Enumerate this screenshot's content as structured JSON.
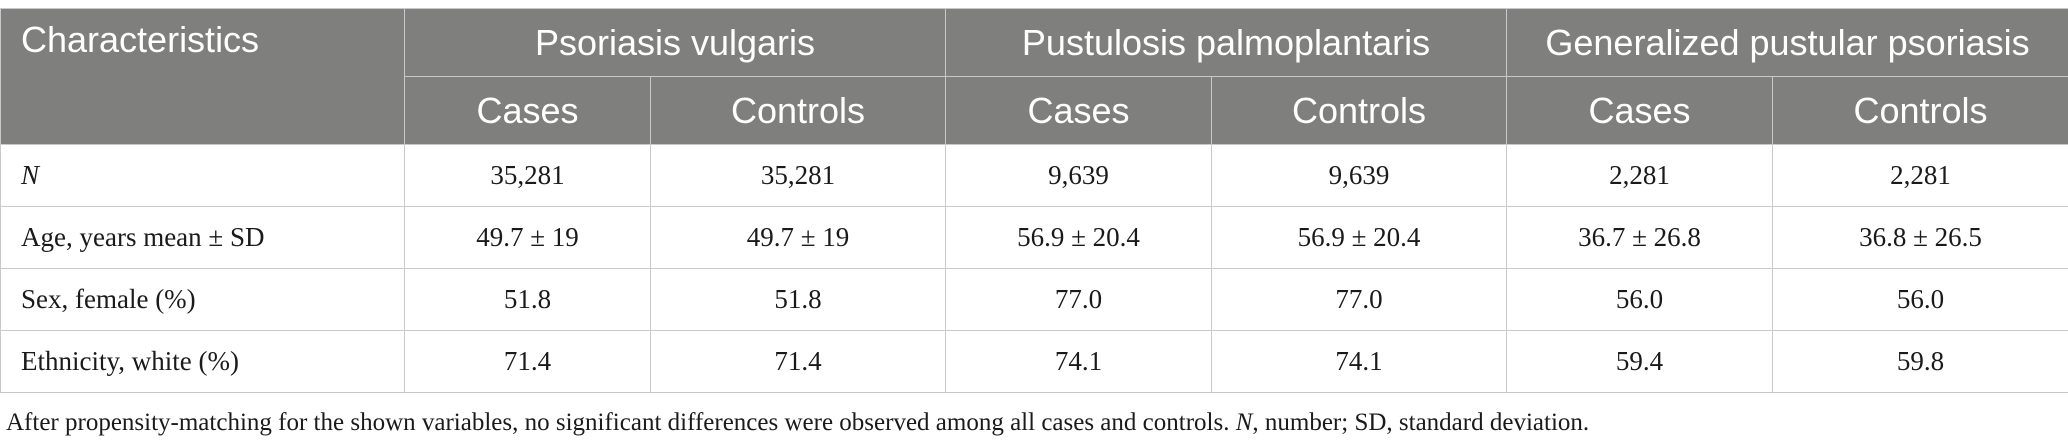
{
  "table": {
    "header": {
      "characteristics": "Characteristics",
      "groups": [
        "Psoriasis vulgaris",
        "Pustulosis palmoplantaris",
        "Generalized pustular psoriasis"
      ],
      "subheaders": [
        "Cases",
        "Controls",
        "Cases",
        "Controls",
        "Cases",
        "Controls"
      ]
    },
    "rows": [
      {
        "label": "N",
        "values": [
          "35,281",
          "35,281",
          "9,639",
          "9,639",
          "2,281",
          "2,281"
        ]
      },
      {
        "label": "Age, years mean ± SD",
        "values": [
          "49.7 ± 19",
          "49.7 ± 19",
          "56.9 ± 20.4",
          "56.9 ± 20.4",
          "36.7 ± 26.8",
          "36.8 ± 26.5"
        ]
      },
      {
        "label": "Sex, female (%)",
        "values": [
          "51.8",
          "51.8",
          "77.0",
          "77.0",
          "56.0",
          "56.0"
        ]
      },
      {
        "label": "Ethnicity, white (%)",
        "values": [
          "71.4",
          "71.4",
          "74.1",
          "74.1",
          "59.4",
          "59.8"
        ]
      }
    ]
  },
  "footnote": {
    "text_1": "After propensity-matching for the shown variables, no significant differences were observed among all cases and controls. ",
    "n_abbr": "N",
    "text_2": ", number; SD, standard deviation."
  }
}
